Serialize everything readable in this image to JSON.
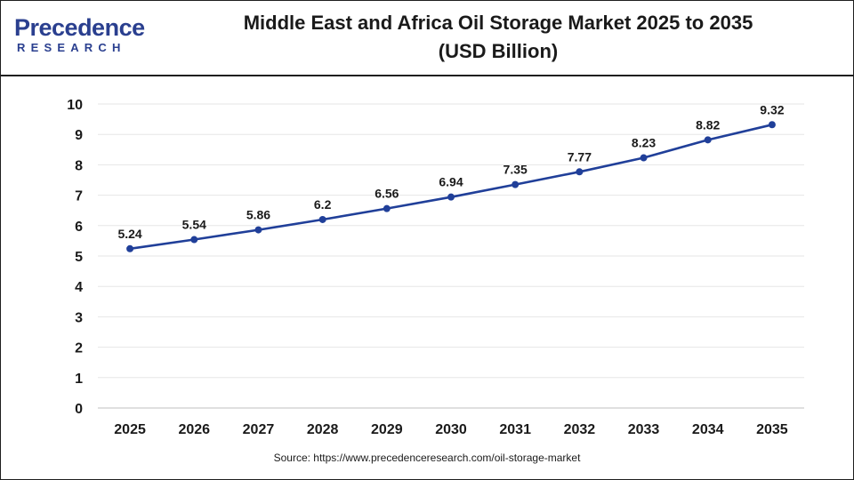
{
  "header": {
    "logo_word": "Precedence",
    "logo_sub": "RESEARCH",
    "title_line1": "Middle East and Africa Oil Storage Market 2025 to 2035",
    "title_line2": "(USD Billion)"
  },
  "footer": {
    "source": "Source: https://www.precedenceresearch.com/oil-storage-market"
  },
  "colors": {
    "line": "#203f99",
    "grid": "#e6e6e6",
    "brand": "#2a3f8f"
  },
  "chart_data": {
    "type": "line",
    "title": "Middle East and Africa Oil Storage Market 2025 to 2035 (USD Billion)",
    "x": [
      "2025",
      "2026",
      "2027",
      "2028",
      "2029",
      "2030",
      "2031",
      "2032",
      "2033",
      "2034",
      "2035"
    ],
    "values": [
      5.24,
      5.54,
      5.86,
      6.2,
      6.56,
      6.94,
      7.35,
      7.77,
      8.23,
      8.82,
      9.32
    ],
    "data_labels": [
      "5.24",
      "5.54",
      "5.86",
      "6.2",
      "6.56",
      "6.94",
      "7.35",
      "7.77",
      "8.23",
      "8.82",
      "9.32"
    ],
    "yticks": [
      "0",
      "1",
      "2",
      "3",
      "4",
      "5",
      "6",
      "7",
      "8",
      "9",
      "10"
    ],
    "ylim": [
      0,
      10
    ],
    "grid": true,
    "legend": "none",
    "markers": true
  }
}
